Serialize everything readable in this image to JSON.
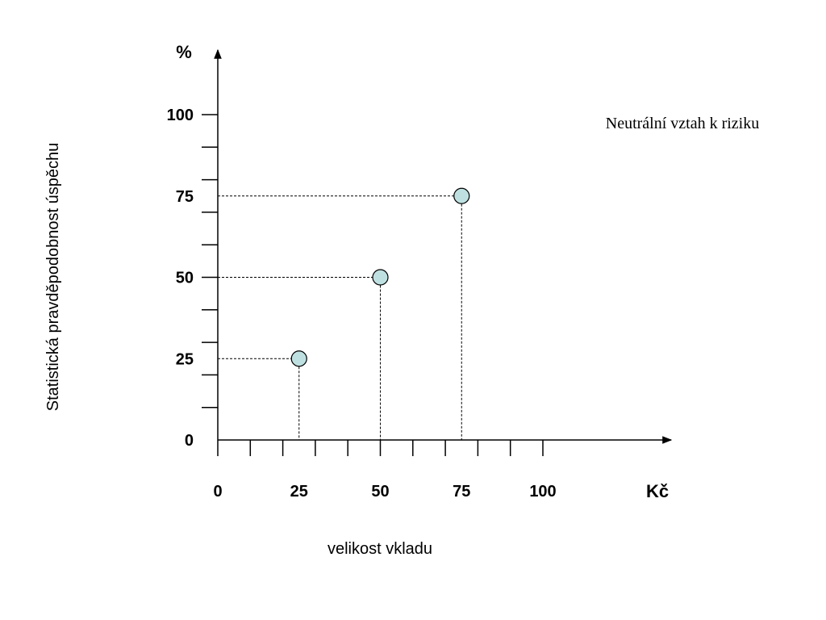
{
  "chart_data": {
    "type": "scatter",
    "title": "",
    "xlabel": "velikost vkladu",
    "ylabel": "Statistická pravděpodobnost úspěchu",
    "x_unit": "Kč",
    "y_unit": "%",
    "annotation": "Neutrální vztah k riziku",
    "xlim": [
      0,
      100
    ],
    "ylim": [
      0,
      100
    ],
    "x_tick_labels": [
      "0",
      "25",
      "50",
      "75",
      "100"
    ],
    "y_tick_labels": [
      "0",
      "25",
      "50",
      "75",
      "100"
    ],
    "x_minor_step": 10,
    "y_minor_step": 10,
    "grid": false,
    "legend": "none",
    "point_color": "#bfe0e0",
    "points": [
      {
        "x": 25,
        "y": 25
      },
      {
        "x": 50,
        "y": 50
      },
      {
        "x": 75,
        "y": 75
      }
    ]
  }
}
